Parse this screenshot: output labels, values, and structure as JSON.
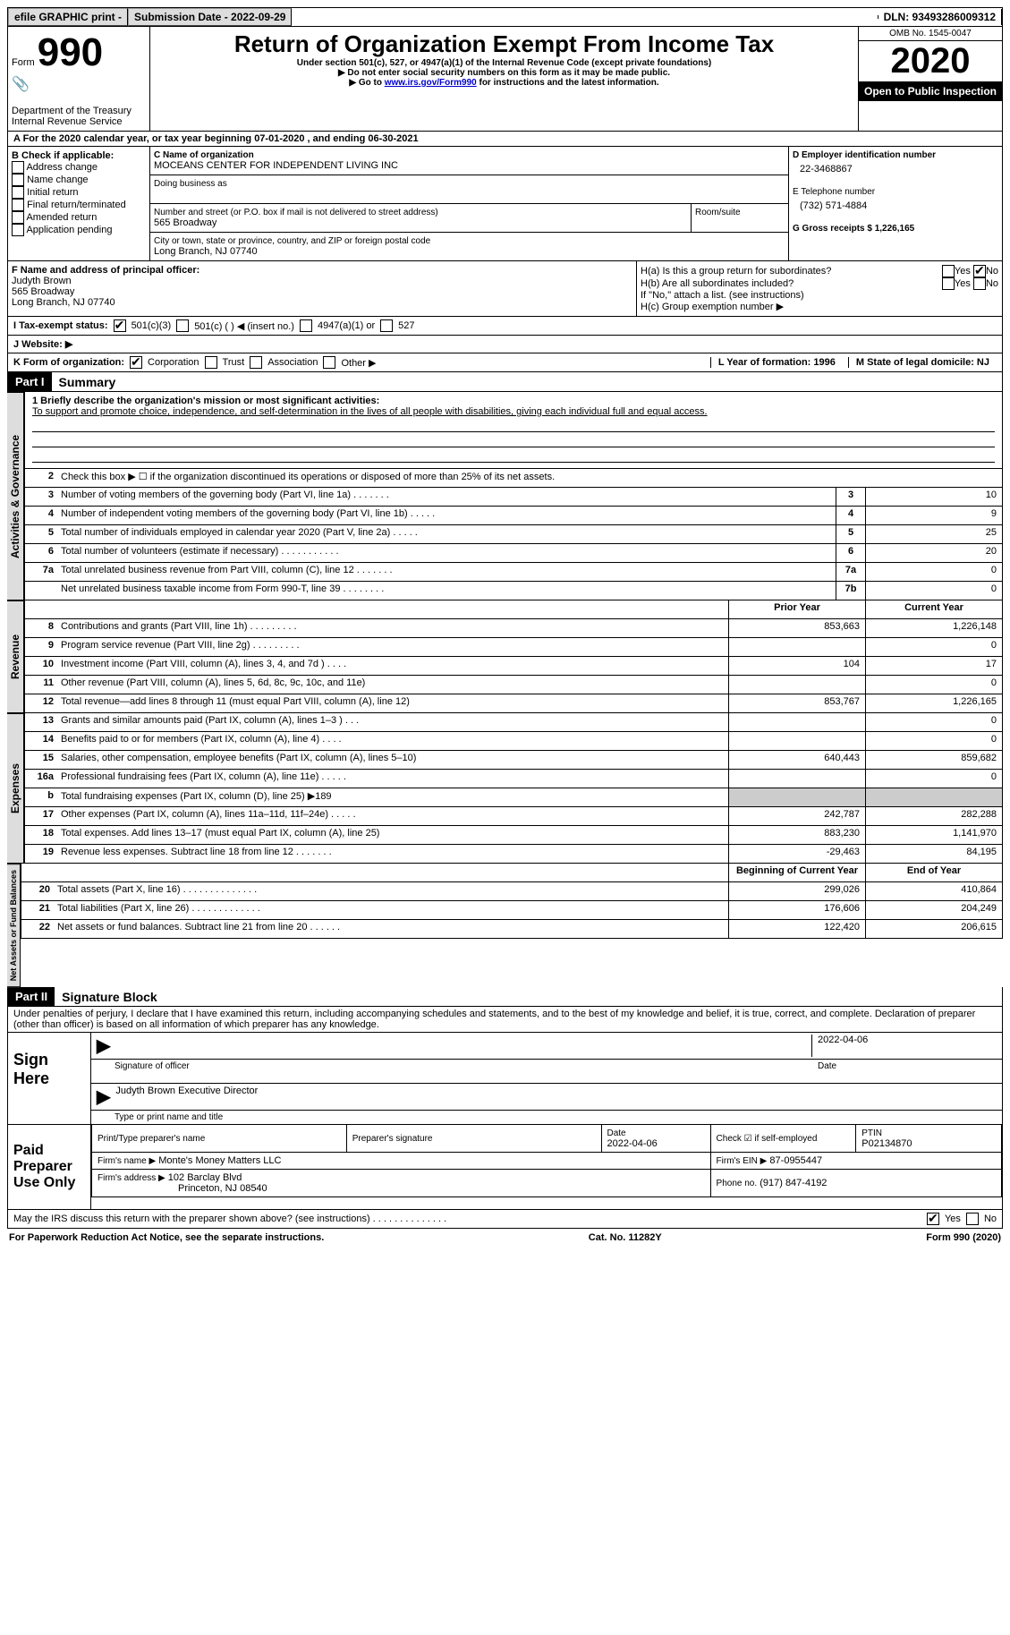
{
  "topbar": {
    "efile": "efile GRAPHIC print - ",
    "submission_label": "Submission Date - 2022-09-29",
    "dln_label": "DLN: 93493286009312"
  },
  "header": {
    "form_word": "Form",
    "form_num": "990",
    "dept": "Department of the Treasury\nInternal Revenue Service",
    "title": "Return of Organization Exempt From Income Tax",
    "subtitle": "Under section 501(c), 527, or 4947(a)(1) of the Internal Revenue Code (except private foundations)",
    "note1": "▶ Do not enter social security numbers on this form as it may be made public.",
    "note2_pre": "▶ Go to ",
    "note2_link": "www.irs.gov/Form990",
    "note2_post": " for instructions and the latest information.",
    "omb": "OMB No. 1545-0047",
    "year": "2020",
    "inspection": "Open to Public Inspection"
  },
  "rowA": "A For the 2020 calendar year, or tax year beginning 07-01-2020     , and ending 06-30-2021",
  "secB": {
    "title": "B Check if applicable:",
    "items": [
      "Address change",
      "Name change",
      "Initial return",
      "Final return/terminated",
      "Amended return",
      "Application pending"
    ],
    "c_label": "C Name of organization",
    "c_name": "MOCEANS CENTER FOR INDEPENDENT LIVING INC",
    "dba_label": "Doing business as",
    "street_label": "Number and street (or P.O. box if mail is not delivered to street address)",
    "street": "565 Broadway",
    "room_label": "Room/suite",
    "city_label": "City or town, state or province, country, and ZIP or foreign postal code",
    "city": "Long Branch, NJ  07740",
    "d_label": "D Employer identification number",
    "d_val": "22-3468867",
    "e_label": "E Telephone number",
    "e_val": "(732) 571-4884",
    "g_label": "G Gross receipts $ 1,226,165"
  },
  "secF": {
    "f_label": "F  Name and address of principal officer:",
    "f_name": "Judyth Brown",
    "f_street": "565 Broadway",
    "f_city": "Long Branch, NJ  07740",
    "ha_label": "H(a)  Is this a group return for subordinates?",
    "hb_label": "H(b)  Are all subordinates included?",
    "hb_note": "If \"No,\" attach a list. (see instructions)",
    "hc_label": "H(c)  Group exemption number ▶",
    "yes": "Yes",
    "no": "No"
  },
  "rowI": {
    "label": "I    Tax-exempt status:",
    "o1": "501(c)(3)",
    "o2": "501(c) (  ) ◀ (insert no.)",
    "o3": "4947(a)(1) or",
    "o4": "527"
  },
  "rowJ": "J   Website: ▶",
  "rowK": {
    "label": "K Form of organization:",
    "o1": "Corporation",
    "o2": "Trust",
    "o3": "Association",
    "o4": "Other ▶",
    "l": "L Year of formation: 1996",
    "m": "M State of legal domicile: NJ"
  },
  "part1": {
    "hdr": "Part I",
    "title": "Summary",
    "q1": "1    Briefly describe the organization's mission or most significant activities:",
    "mission": "To support and promote choice, independence, and self-determination in the lives of all people with disabilities, giving each individual full and equal access.",
    "q2": "Check this box ▶ ☐  if the organization discontinued its operations or disposed of more than 25% of its net assets.",
    "tabs": {
      "gov": "Activities & Governance",
      "rev": "Revenue",
      "exp": "Expenses",
      "net": "Net Assets or Fund Balances"
    },
    "col_prior": "Prior Year",
    "col_curr": "Current Year",
    "col_beg": "Beginning of Current Year",
    "col_end": "End of Year",
    "gov_lines": [
      {
        "n": "3",
        "d": "Number of voting members of the governing body (Part VI, line 1a)   .   .   .   .   .   .   .",
        "b": "3",
        "v": "10"
      },
      {
        "n": "4",
        "d": "Number of independent voting members of the governing body (Part VI, line 1b)   .   .   .   .   .",
        "b": "4",
        "v": "9"
      },
      {
        "n": "5",
        "d": "Total number of individuals employed in calendar year 2020 (Part V, line 2a)   .   .   .   .   .",
        "b": "5",
        "v": "25"
      },
      {
        "n": "6",
        "d": "Total number of volunteers (estimate if necessary)   .   .   .   .   .   .   .   .   .   .   .",
        "b": "6",
        "v": "20"
      },
      {
        "n": "7a",
        "d": "Total unrelated business revenue from Part VIII, column (C), line 12   .   .   .   .   .   .   .",
        "b": "7a",
        "v": "0"
      },
      {
        "n": "",
        "d": "Net unrelated business taxable income from Form 990-T, line 39   .   .   .   .   .   .   .   .",
        "b": "7b",
        "v": "0"
      }
    ],
    "rev_lines": [
      {
        "n": "8",
        "d": "Contributions and grants (Part VIII, line 1h)   .   .   .   .   .   .   .   .   .",
        "p": "853,663",
        "c": "1,226,148"
      },
      {
        "n": "9",
        "d": "Program service revenue (Part VIII, line 2g)   .   .   .   .   .   .   .   .   .",
        "p": "",
        "c": "0"
      },
      {
        "n": "10",
        "d": "Investment income (Part VIII, column (A), lines 3, 4, and 7d )   .   .   .   .",
        "p": "104",
        "c": "17"
      },
      {
        "n": "11",
        "d": "Other revenue (Part VIII, column (A), lines 5, 6d, 8c, 9c, 10c, and 11e)",
        "p": "",
        "c": "0"
      },
      {
        "n": "12",
        "d": "Total revenue—add lines 8 through 11 (must equal Part VIII, column (A), line 12)",
        "p": "853,767",
        "c": "1,226,165"
      }
    ],
    "exp_lines": [
      {
        "n": "13",
        "d": "Grants and similar amounts paid (Part IX, column (A), lines 1–3 )   .   .   .",
        "p": "",
        "c": "0"
      },
      {
        "n": "14",
        "d": "Benefits paid to or for members (Part IX, column (A), line 4)   .   .   .   .",
        "p": "",
        "c": "0"
      },
      {
        "n": "15",
        "d": "Salaries, other compensation, employee benefits (Part IX, column (A), lines 5–10)",
        "p": "640,443",
        "c": "859,682"
      },
      {
        "n": "16a",
        "d": "Professional fundraising fees (Part IX, column (A), line 11e)   .   .   .   .   .",
        "p": "",
        "c": "0"
      },
      {
        "n": "b",
        "d": "Total fundraising expenses (Part IX, column (D), line 25) ▶189",
        "p": "grey",
        "c": "grey"
      },
      {
        "n": "17",
        "d": "Other expenses (Part IX, column (A), lines 11a–11d, 11f–24e)   .   .   .   .   .",
        "p": "242,787",
        "c": "282,288"
      },
      {
        "n": "18",
        "d": "Total expenses. Add lines 13–17 (must equal Part IX, column (A), line 25)",
        "p": "883,230",
        "c": "1,141,970"
      },
      {
        "n": "19",
        "d": "Revenue less expenses. Subtract line 18 from line 12   .   .   .   .   .   .   .",
        "p": "-29,463",
        "c": "84,195"
      }
    ],
    "net_lines": [
      {
        "n": "20",
        "d": "Total assets (Part X, line 16)   .   .   .   .   .   .   .   .   .   .   .   .   .   .",
        "p": "299,026",
        "c": "410,864"
      },
      {
        "n": "21",
        "d": "Total liabilities (Part X, line 26)   .   .   .   .   .   .   .   .   .   .   .   .   .",
        "p": "176,606",
        "c": "204,249"
      },
      {
        "n": "22",
        "d": "Net assets or fund balances. Subtract line 21 from line 20   .   .   .   .   .   .",
        "p": "122,420",
        "c": "206,615"
      }
    ]
  },
  "part2": {
    "hdr": "Part II",
    "title": "Signature Block",
    "perjury": "Under penalties of perjury, I declare that I have examined this return, including accompanying schedules and statements, and to the best of my knowledge and belief, it is true, correct, and complete. Declaration of preparer (other than officer) is based on all information of which preparer has any knowledge.",
    "sign_here": "Sign Here",
    "sig_officer": "Signature of officer",
    "sig_date": "2022-04-06",
    "date_lbl": "Date",
    "officer_name": "Judyth Brown  Executive Director",
    "type_lbl": "Type or print name and title",
    "paid": "Paid Preparer Use Only",
    "p_name_lbl": "Print/Type preparer's name",
    "p_sig_lbl": "Preparer's signature",
    "p_date_lbl": "Date",
    "p_date": "2022-04-06",
    "p_check_lbl": "Check ☑ if self-employed",
    "ptin_lbl": "PTIN",
    "ptin": "P02134870",
    "firm_name_lbl": "Firm's name      ▶",
    "firm_name": "Monte's Money Matters LLC",
    "firm_ein_lbl": "Firm's EIN ▶",
    "firm_ein": "87-0955447",
    "firm_addr_lbl": "Firm's address ▶",
    "firm_addr1": "102 Barclay Blvd",
    "firm_addr2": "Princeton, NJ  08540",
    "phone_lbl": "Phone no.",
    "phone": "(917) 847-4192",
    "discuss": "May the IRS discuss this return with the preparer shown above? (see instructions)   .   .   .   .   .   .   .   .   .   .   .   .   .   .",
    "yes": "Yes",
    "no": "No"
  },
  "footer": {
    "left": "For Paperwork Reduction Act Notice, see the separate instructions.",
    "mid": "Cat. No. 11282Y",
    "right": "Form 990 (2020)"
  }
}
